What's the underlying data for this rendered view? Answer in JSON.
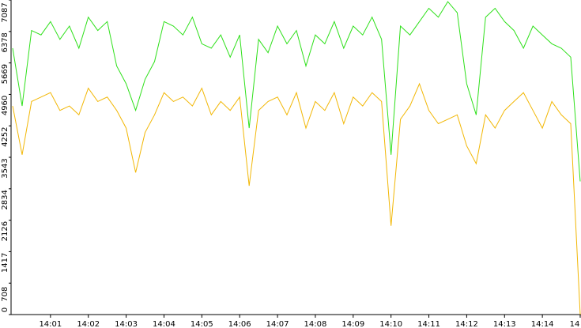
{
  "chart_data": {
    "type": "line",
    "xlim": [
      0,
      15
    ],
    "xticks": [
      {
        "value": 1,
        "label": "14:01"
      },
      {
        "value": 2,
        "label": "14:02"
      },
      {
        "value": 3,
        "label": "14:03"
      },
      {
        "value": 4,
        "label": "14:04"
      },
      {
        "value": 5,
        "label": "14:05"
      },
      {
        "value": 6,
        "label": "14:06"
      },
      {
        "value": 7,
        "label": "14:07"
      },
      {
        "value": 8,
        "label": "14:08"
      },
      {
        "value": 9,
        "label": "14:09"
      },
      {
        "value": 10,
        "label": "14:10"
      },
      {
        "value": 11,
        "label": "14:11"
      },
      {
        "value": 12,
        "label": "14:12"
      },
      {
        "value": 13,
        "label": "14:13"
      },
      {
        "value": 14,
        "label": "14:14"
      },
      {
        "value": 15,
        "label": "14"
      }
    ],
    "ylim": [
      0,
      7087
    ],
    "yticks": [
      0,
      708,
      1417,
      2126,
      2834,
      3543,
      4252,
      4960,
      5669,
      6378,
      7087
    ],
    "x": [
      0,
      0.25,
      0.5,
      0.75,
      1,
      1.25,
      1.5,
      1.75,
      2,
      2.25,
      2.5,
      2.75,
      3,
      3.25,
      3.5,
      3.75,
      4,
      4.25,
      4.5,
      4.75,
      5,
      5.25,
      5.5,
      5.75,
      6,
      6.25,
      6.5,
      6.75,
      7,
      7.25,
      7.5,
      7.75,
      8,
      8.25,
      8.5,
      8.75,
      9,
      9.25,
      9.5,
      9.75,
      10,
      10.25,
      10.5,
      10.75,
      11,
      11.25,
      11.5,
      11.75,
      12,
      12.25,
      12.5,
      12.75,
      13,
      13.25,
      13.5,
      13.75,
      14,
      14.25,
      14.5,
      14.75,
      15
    ],
    "series": [
      {
        "color": "#2ee01a",
        "values": [
          6000,
          4700,
          6400,
          6300,
          6600,
          6200,
          6500,
          6000,
          6700,
          6400,
          6600,
          5600,
          5200,
          4600,
          5300,
          5700,
          6600,
          6500,
          6300,
          6700,
          6100,
          6000,
          6300,
          5800,
          6300,
          4200,
          6200,
          5900,
          6500,
          6100,
          6400,
          5600,
          6300,
          6100,
          6600,
          6000,
          6500,
          6300,
          6700,
          6200,
          3600,
          6500,
          6300,
          6600,
          6900,
          6700,
          7050,
          6800,
          5200,
          4500,
          6700,
          6900,
          6600,
          6400,
          6000,
          6500,
          6300,
          6100,
          6000,
          5800,
          3000
        ]
      },
      {
        "color": "#f2b705",
        "values": [
          4700,
          3600,
          4800,
          4900,
          5000,
          4600,
          4700,
          4500,
          5100,
          4800,
          4900,
          4600,
          4200,
          3200,
          4100,
          4500,
          5000,
          4800,
          4900,
          4700,
          5100,
          4500,
          4800,
          4600,
          4900,
          2900,
          4600,
          4800,
          4900,
          4500,
          5000,
          4200,
          4800,
          4600,
          5000,
          4300,
          4900,
          4700,
          5000,
          4800,
          2000,
          4400,
          4700,
          5200,
          4600,
          4300,
          4400,
          4500,
          3800,
          3400,
          4500,
          4200,
          4600,
          4800,
          5000,
          4600,
          4200,
          4800,
          4500,
          4300,
          0
        ]
      }
    ]
  }
}
